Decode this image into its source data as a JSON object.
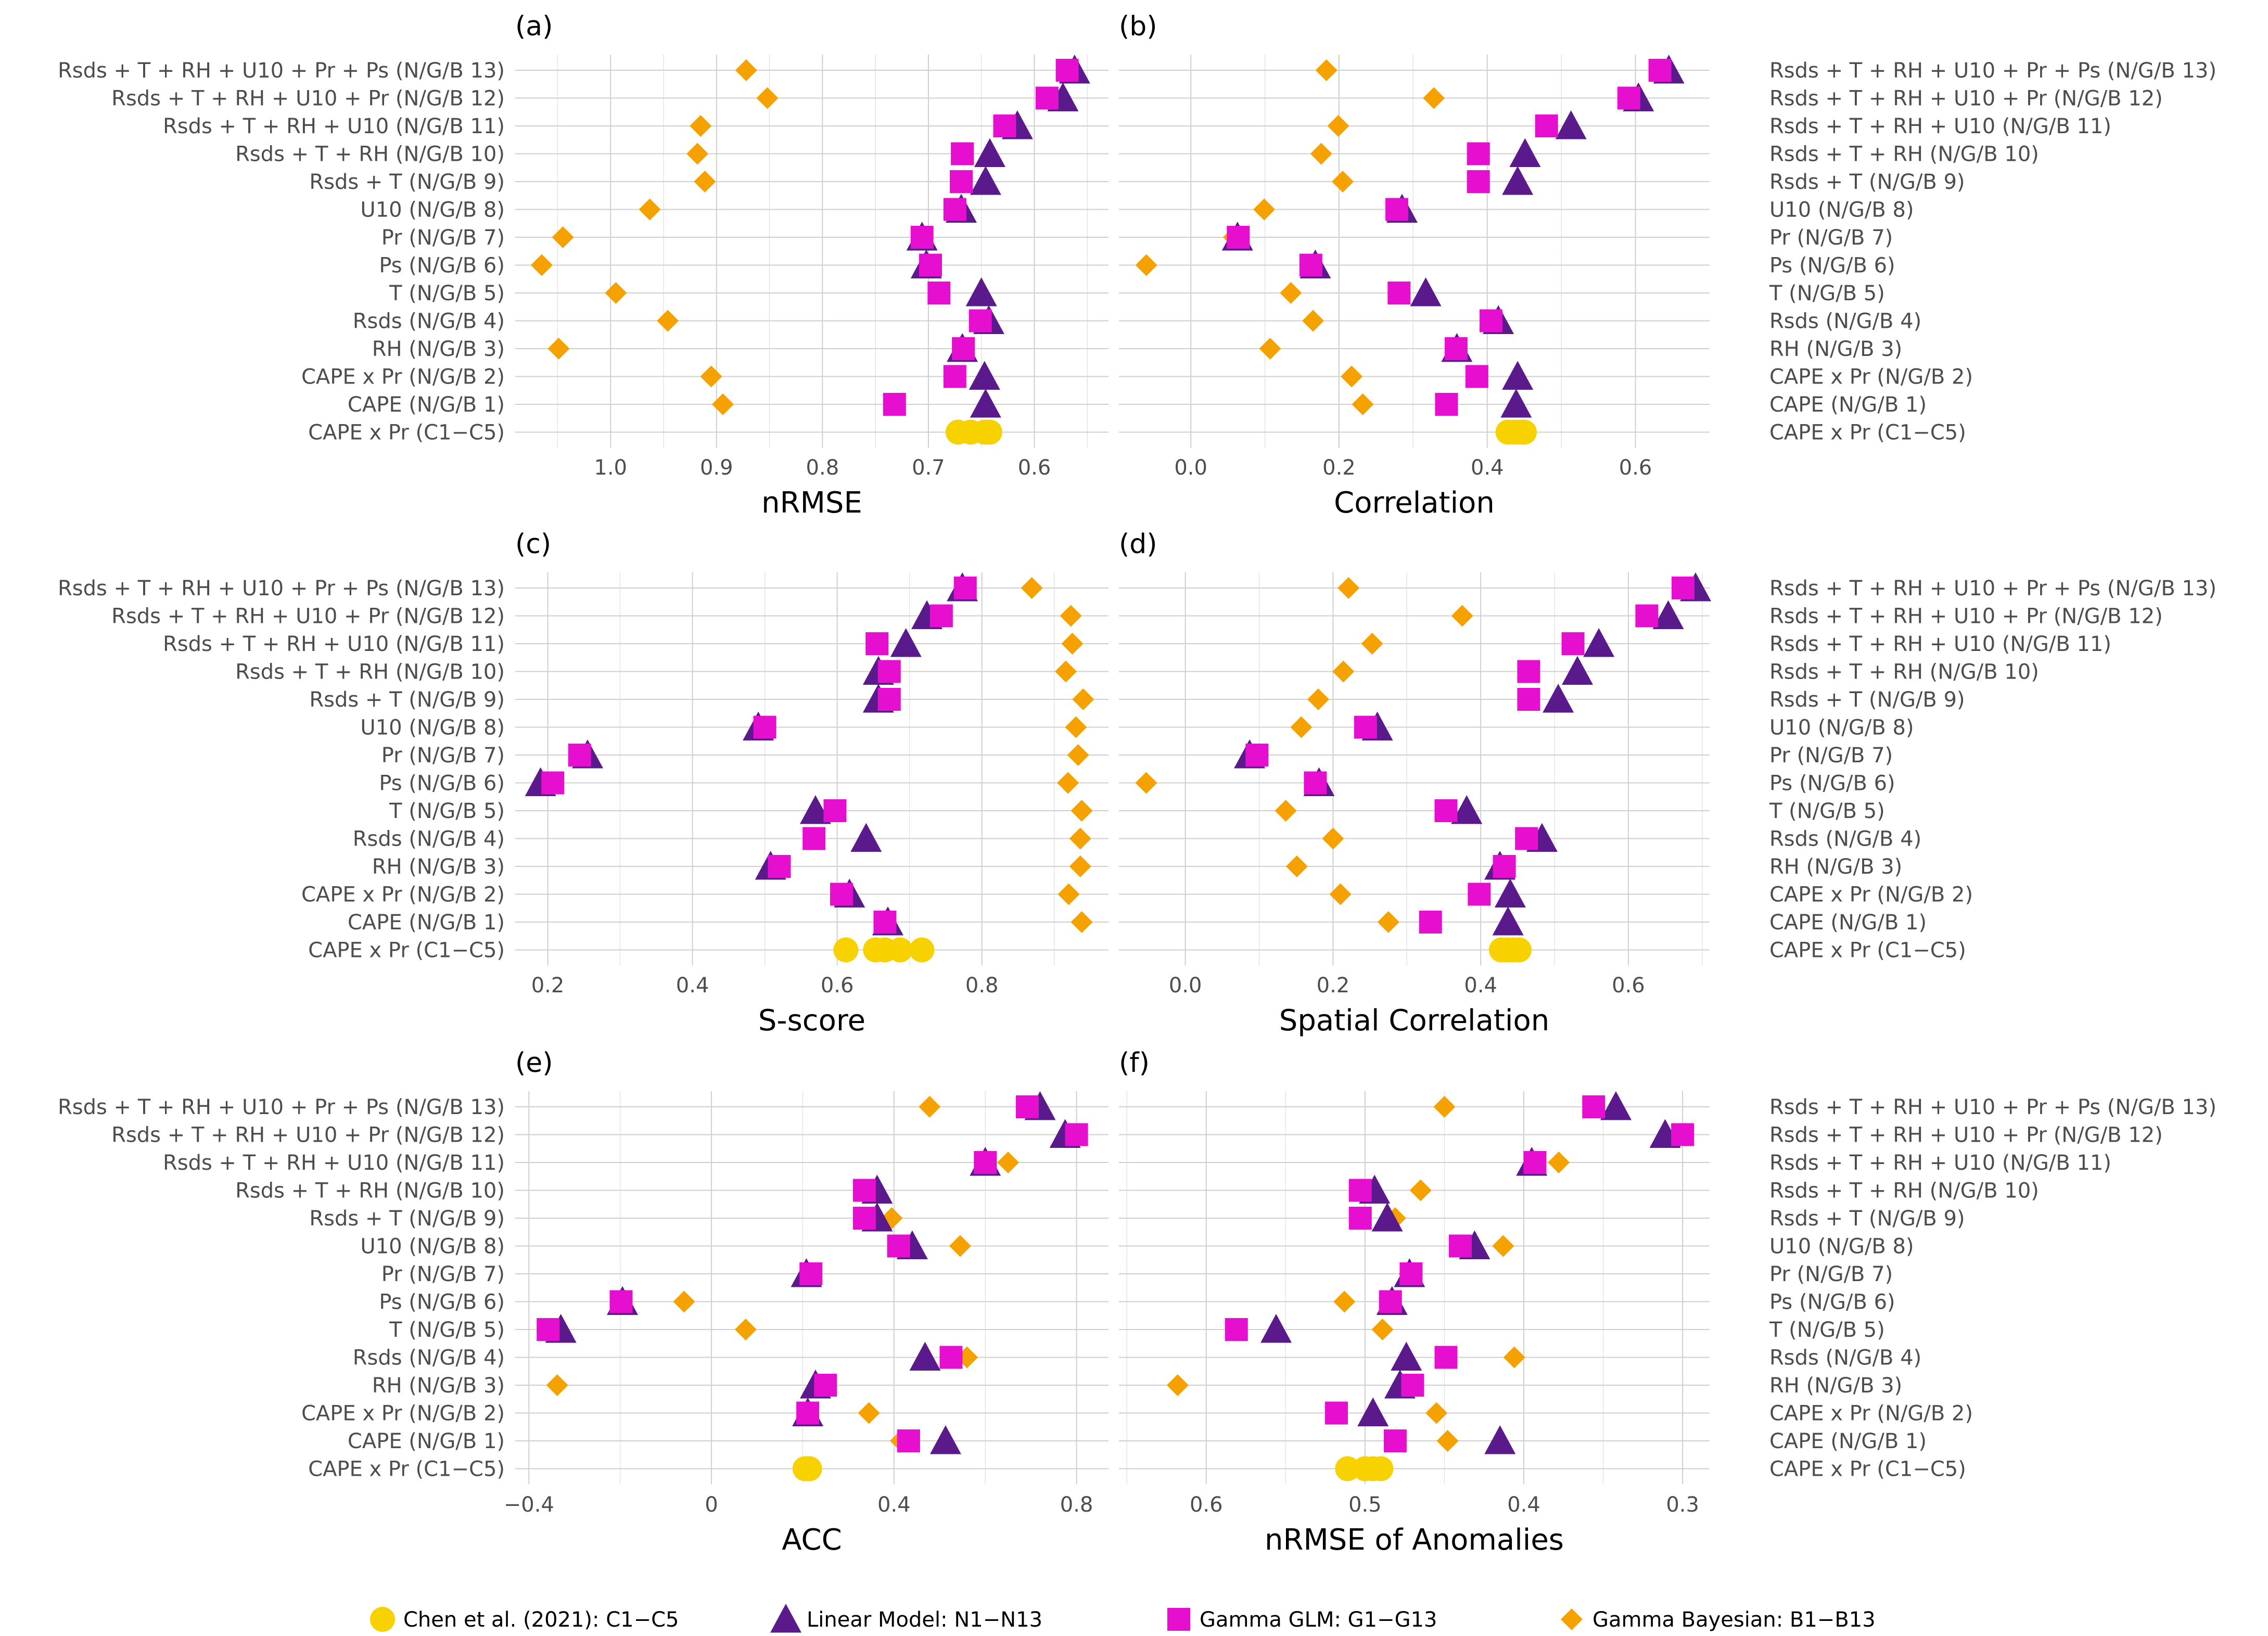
{
  "colors": {
    "chen": "#f7d100",
    "linear": "#5a1a8c",
    "gamma_glm": "#e60fd0",
    "bayesian": "#f5a100",
    "grid": "#cfcfcf",
    "text": "#4d4d4d"
  },
  "legend": [
    {
      "key": "chen",
      "label": "Chen et al. (2021): C1−C5",
      "shape": "circle"
    },
    {
      "key": "linear",
      "label": "Linear Model: N1−N13",
      "shape": "triangle"
    },
    {
      "key": "gamma_glm",
      "label": "Gamma GLM: G1−G13",
      "shape": "square"
    },
    {
      "key": "bayesian",
      "label": "Gamma Bayesian: B1−B13",
      "shape": "diamond"
    }
  ],
  "chart_data": [
    {
      "panel": "(a)",
      "type": "scatter",
      "xlabel": "nRMSE",
      "reversed": true,
      "xlim": [
        1.09,
        0.53
      ],
      "xticks": [
        1.0,
        0.9,
        0.8,
        0.7,
        0.6
      ],
      "tick_labels": [
        "1.0",
        "0.9",
        "0.8",
        "0.7",
        "0.6"
      ],
      "ylabel_side": "left",
      "categories": [
        "Rsds + T + RH + U10 + Pr + Ps (N/G/B 13)",
        "Rsds + T + RH + U10 + Pr (N/G/B 12)",
        "Rsds + T + RH + U10 (N/G/B 11)",
        "Rsds + T + RH (N/G/B 10)",
        "Rsds + T (N/G/B 9)",
        "U10 (N/G/B 8)",
        "Pr (N/G/B 7)",
        "Ps (N/G/B 6)",
        "T (N/G/B 5)",
        "Rsds (N/G/B 4)",
        "RH (N/G/B 3)",
        "CAPE x Pr (N/G/B 2)",
        "CAPE (N/G/B 1)",
        "CAPE x Pr (C1−C5)"
      ],
      "series": [
        {
          "name": "linear",
          "values": [
            0.562,
            0.573,
            0.616,
            0.642,
            0.646,
            0.669,
            0.706,
            0.702,
            0.65,
            0.643,
            0.668,
            0.647,
            0.646,
            null
          ]
        },
        {
          "name": "gamma_glm",
          "values": [
            0.569,
            0.588,
            0.628,
            0.668,
            0.669,
            0.675,
            0.706,
            0.698,
            0.69,
            0.651,
            0.667,
            0.675,
            0.732,
            null
          ]
        },
        {
          "name": "bayesian",
          "values": [
            0.872,
            0.852,
            0.915,
            0.918,
            0.911,
            0.963,
            1.045,
            1.065,
            0.995,
            0.946,
            1.049,
            0.905,
            0.894,
            null
          ]
        }
      ],
      "chen_values": [
        0.672,
        0.66,
        0.647,
        0.642
      ]
    },
    {
      "panel": "(b)",
      "type": "scatter",
      "xlabel": "Correlation",
      "reversed": false,
      "xlim": [
        -0.097,
        0.7
      ],
      "xticks": [
        0.0,
        0.2,
        0.4,
        0.6
      ],
      "tick_labels": [
        "0.0",
        "0.2",
        "0.4",
        "0.6"
      ],
      "ylabel_side": "right",
      "categories": [
        "Rsds + T + RH + U10 + Pr + Ps (N/G/B 13)",
        "Rsds + T + RH + U10 + Pr (N/G/B 12)",
        "Rsds + T + RH + U10 (N/G/B 11)",
        "Rsds + T + RH (N/G/B 10)",
        "Rsds + T (N/G/B 9)",
        "U10 (N/G/B 8)",
        "Pr (N/G/B 7)",
        "Ps (N/G/B 6)",
        "T (N/G/B 5)",
        "Rsds (N/G/B 4)",
        "RH (N/G/B 3)",
        " CAPE x Pr (N/G/B 2)",
        "CAPE (N/G/B 1)",
        "CAPE x Pr (C1−C5)"
      ],
      "series": [
        {
          "name": "linear",
          "values": [
            0.645,
            0.604,
            0.513,
            0.451,
            0.441,
            0.285,
            0.063,
            0.168,
            0.317,
            0.415,
            0.359,
            0.441,
            0.439,
            null
          ]
        },
        {
          "name": "gamma_glm",
          "values": [
            0.633,
            0.591,
            0.48,
            0.388,
            0.388,
            0.278,
            0.064,
            0.162,
            0.281,
            0.405,
            0.358,
            0.386,
            0.345,
            null
          ]
        },
        {
          "name": "bayesian",
          "values": [
            0.183,
            0.328,
            0.199,
            0.176,
            0.205,
            0.099,
            0.058,
            -0.06,
            0.135,
            0.165,
            0.107,
            0.217,
            0.232,
            null
          ]
        }
      ],
      "chen_values": [
        0.428,
        0.436,
        0.444,
        0.45
      ]
    },
    {
      "panel": "(c)",
      "type": "scatter",
      "xlabel": "S-score",
      "reversed": false,
      "xlim": [
        0.155,
        0.975
      ],
      "xticks": [
        0.2,
        0.4,
        0.6,
        0.8
      ],
      "tick_labels": [
        "0.2",
        "0.4",
        "0.6",
        "0.8"
      ],
      "ylabel_side": "left",
      "categories": [
        "Rsds + T + RH + U10 + Pr + Ps (N/G/B 13)",
        "Rsds + T + RH + U10 + Pr (N/G/B 12)",
        "Rsds + T + RH + U10 (N/G/B 11)",
        "Rsds + T + RH (N/G/B 10)",
        "Rsds + T (N/G/B 9)",
        "U10 (N/G/B 8)",
        "Pr (N/G/B 7)",
        "Ps (N/G/B 6)",
        "T (N/G/B 5)",
        "Rsds (N/G/B 4)",
        "RH (N/G/B 3)",
        "CAPE x Pr (N/G/B 2)",
        "CAPE (N/G/B 1)",
        "CAPE x Pr (C1−C5)"
      ],
      "series": [
        {
          "name": "linear",
          "values": [
            0.773,
            0.724,
            0.695,
            0.657,
            0.657,
            0.491,
            0.255,
            0.19,
            0.57,
            0.64,
            0.508,
            0.617,
            0.67,
            null
          ]
        },
        {
          "name": "gamma_glm",
          "values": [
            0.777,
            0.744,
            0.655,
            0.672,
            0.672,
            0.5,
            0.244,
            0.207,
            0.597,
            0.568,
            0.52,
            0.606,
            0.666,
            null
          ]
        },
        {
          "name": "bayesian",
          "values": [
            0.869,
            0.923,
            0.925,
            0.916,
            0.94,
            0.93,
            0.933,
            0.919,
            0.938,
            0.936,
            0.936,
            0.92,
            0.938,
            null
          ]
        }
      ],
      "chen_values": [
        0.612,
        0.653,
        0.666,
        0.687,
        0.717
      ]
    },
    {
      "panel": "(d)",
      "type": "scatter",
      "xlabel": "Spatial Correlation",
      "reversed": false,
      "xlim": [
        -0.09,
        0.71
      ],
      "xticks": [
        0.0,
        0.2,
        0.4,
        0.6
      ],
      "tick_labels": [
        "0.0",
        "0.2",
        "0.4",
        "0.6"
      ],
      "ylabel_side": "right",
      "categories": [
        "Rsds + T + RH + U10 + Pr + Ps (N/G/B 13)",
        "Rsds + T + RH + U10 + Pr (N/G/B 12)",
        "Rsds + T + RH + U10 (N/G/B 11)",
        "Rsds + T + RH (N/G/B 10)",
        "Rsds + T (N/G/B 9)",
        "U10 (N/G/B 8)",
        "Pr (N/G/B 7)",
        "Ps (N/G/B 6)",
        "T (N/G/B 5)",
        "Rsds (N/G/B 4)",
        "RH (N/G/B 3)",
        " CAPE x Pr (N/G/B 2)",
        "CAPE (N/G/B 1)",
        "CAPE x Pr (C1−C5)"
      ],
      "series": [
        {
          "name": "linear",
          "values": [
            0.691,
            0.654,
            0.56,
            0.531,
            0.505,
            0.26,
            0.087,
            0.181,
            0.381,
            0.483,
            0.426,
            0.44,
            0.437,
            null
          ]
        },
        {
          "name": "gamma_glm",
          "values": [
            0.674,
            0.625,
            0.525,
            0.465,
            0.465,
            0.244,
            0.097,
            0.176,
            0.353,
            0.462,
            0.432,
            0.398,
            0.332,
            null
          ]
        },
        {
          "name": "bayesian",
          "values": [
            0.221,
            0.375,
            0.253,
            0.214,
            0.18,
            0.157,
            0.098,
            -0.053,
            0.136,
            0.2,
            0.151,
            0.21,
            0.275,
            null
          ]
        }
      ],
      "chen_values": [
        0.428,
        0.436,
        0.444,
        0.452
      ]
    },
    {
      "panel": "(e)",
      "type": "scatter",
      "xlabel": "ACC",
      "reversed": false,
      "xlim": [
        -0.43,
        0.87
      ],
      "xticks": [
        -0.4,
        0.0,
        0.4,
        0.8
      ],
      "tick_labels": [
        "−0.4",
        "0",
        "0.4",
        "0.8"
      ],
      "ylabel_side": "left",
      "categories": [
        "Rsds + T + RH + U10 + Pr + Ps (N/G/B 13)",
        "Rsds + T + RH + U10 + Pr (N/G/B 12)",
        "Rsds + T + RH + U10 (N/G/B 11)",
        "Rsds + T + RH (N/G/B 10)",
        "Rsds + T (N/G/B 9)",
        "U10 (N/G/B 8)",
        "Pr (N/G/B 7)",
        "Ps (N/G/B 6)",
        "T (N/G/B 5)",
        "Rsds (N/G/B 4)",
        "RH (N/G/B 3)",
        "CAPE x Pr (N/G/B 2)",
        "CAPE (N/G/B 1)",
        "CAPE x Pr (C1−C5)"
      ],
      "series": [
        {
          "name": "linear",
          "values": [
            0.72,
            0.775,
            0.6,
            0.363,
            0.363,
            0.44,
            0.208,
            -0.195,
            -0.33,
            0.468,
            0.228,
            0.211,
            0.513,
            null
          ]
        },
        {
          "name": "gamma_glm",
          "values": [
            0.692,
            0.8,
            0.6,
            0.335,
            0.335,
            0.41,
            0.218,
            -0.198,
            -0.358,
            0.525,
            0.25,
            0.211,
            0.432,
            null
          ]
        },
        {
          "name": "bayesian",
          "values": [
            0.478,
            0.78,
            0.65,
            0.335,
            0.395,
            0.545,
            0.22,
            -0.06,
            0.075,
            0.56,
            -0.338,
            0.345,
            0.415,
            null
          ]
        }
      ],
      "chen_values": [
        0.205,
        0.21,
        0.215
      ]
    },
    {
      "panel": "(f)",
      "type": "scatter",
      "xlabel": "nRMSE of Anomalies",
      "reversed": true,
      "xlim": [
        0.655,
        0.283
      ],
      "xticks": [
        0.6,
        0.5,
        0.4,
        0.3
      ],
      "tick_labels": [
        "0.6",
        "0.5",
        "0.4",
        "0.3"
      ],
      "ylabel_side": "right",
      "categories": [
        "Rsds + T + RH + U10 + Pr + Ps (N/G/B 13)",
        "Rsds + T + RH + U10 + Pr (N/G/B 12)",
        "Rsds + T + RH + U10 (N/G/B 11)",
        "Rsds + T + RH (N/G/B 10)",
        "Rsds + T (N/G/B 9)",
        "U10 (N/G/B 8)",
        "Pr (N/G/B 7)",
        "Ps (N/G/B 6)",
        "T (N/G/B 5)",
        "Rsds (N/G/B 4)",
        "RH (N/G/B 3)",
        " CAPE x Pr (N/G/B 2)",
        "CAPE (N/G/B 1)",
        "CAPE x Pr (C1−C5)"
      ],
      "series": [
        {
          "name": "linear",
          "values": [
            0.342,
            0.311,
            0.395,
            0.494,
            0.486,
            0.431,
            0.472,
            0.483,
            0.556,
            0.474,
            0.478,
            0.495,
            0.415,
            null
          ]
        },
        {
          "name": "gamma_glm",
          "values": [
            0.356,
            0.3,
            0.393,
            0.503,
            0.503,
            0.44,
            0.471,
            0.484,
            0.581,
            0.449,
            0.47,
            0.518,
            0.481,
            null
          ]
        },
        {
          "name": "bayesian",
          "values": [
            0.45,
            0.3,
            0.378,
            0.465,
            0.481,
            0.413,
            0.472,
            0.513,
            0.489,
            0.406,
            0.618,
            0.455,
            0.448,
            null
          ]
        }
      ],
      "chen_values": [
        0.511,
        0.5,
        0.495,
        0.49
      ]
    }
  ]
}
